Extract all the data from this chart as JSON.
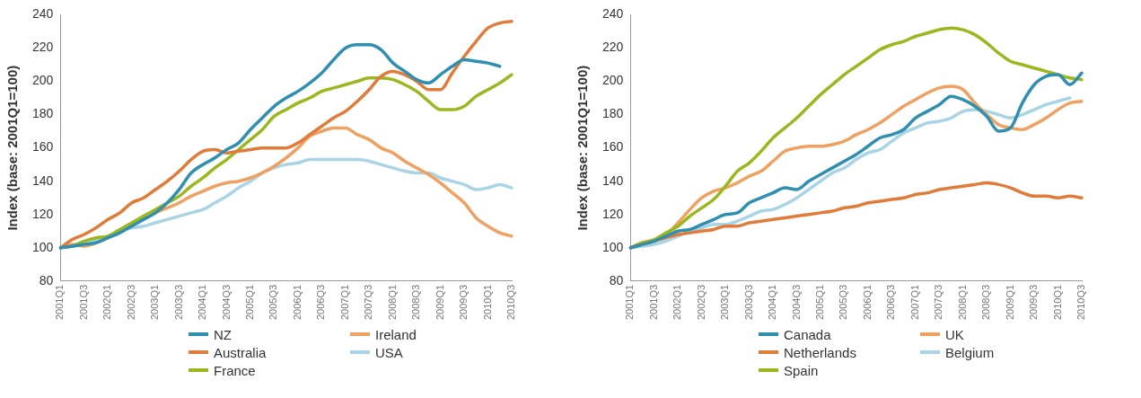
{
  "chart_data": [
    {
      "type": "line",
      "ylabel": "Index (base: 2001Q1=100)",
      "categories": [
        "2001Q1",
        null,
        "2001Q3",
        null,
        "2002Q1",
        null,
        "2002Q3",
        null,
        "2003Q1",
        null,
        "2003Q3",
        null,
        "2004Q1",
        null,
        "2004Q3",
        null,
        "2005Q1",
        null,
        "2005Q3",
        null,
        "2006Q1",
        null,
        "2006Q3",
        null,
        "2007Q1",
        null,
        "2007Q3",
        null,
        "2008Q1",
        null,
        "2008Q3",
        null,
        "2009Q1",
        null,
        "2009Q3",
        null,
        "2010Q1",
        null,
        "2010Q3"
      ],
      "ylim": [
        80,
        240
      ],
      "yticks": [
        80,
        100,
        120,
        140,
        160,
        180,
        200,
        220,
        240
      ],
      "grid": false,
      "legend": "bottom",
      "marker": "none",
      "line_style": "solid",
      "series": [
        {
          "name": "NZ",
          "color": "#2e8fb0",
          "values": [
            100,
            101,
            102,
            103,
            106,
            109,
            113,
            117,
            121,
            127,
            135,
            145,
            150,
            154,
            159,
            163,
            171,
            178,
            185,
            190,
            194,
            199,
            205,
            213,
            220,
            222,
            222,
            219,
            211,
            206,
            201,
            199,
            204,
            209,
            213,
            212,
            211,
            209,
            null
          ]
        },
        {
          "name": "Australia",
          "color": "#e07b39",
          "values": [
            100,
            105,
            108,
            112,
            117,
            121,
            127,
            130,
            135,
            140,
            146,
            153,
            158,
            159,
            157,
            158,
            159,
            160,
            160,
            160,
            163,
            168,
            173,
            178,
            182,
            188,
            195,
            203,
            206,
            204,
            200,
            195,
            195,
            205,
            215,
            224,
            232,
            235,
            236
          ]
        },
        {
          "name": "France",
          "color": "#9ab81e",
          "values": [
            100,
            101,
            104,
            106,
            107,
            111,
            115,
            119,
            123,
            127,
            131,
            137,
            142,
            148,
            153,
            159,
            165,
            171,
            179,
            183,
            187,
            190,
            194,
            196,
            198,
            200,
            202,
            202,
            201,
            198,
            194,
            188,
            183,
            183,
            185,
            191,
            195,
            199,
            204
          ]
        },
        {
          "name": "Ireland",
          "color": "#f0a060",
          "values": [
            100,
            102,
            101,
            103,
            106,
            110,
            114,
            117,
            121,
            124,
            127,
            131,
            134,
            137,
            139,
            140,
            142,
            145,
            149,
            154,
            160,
            167,
            170,
            172,
            172,
            168,
            165,
            160,
            157,
            152,
            148,
            144,
            139,
            133,
            127,
            118,
            113,
            109,
            107
          ]
        },
        {
          "name": "USA",
          "color": "#a8d4e6",
          "values": [
            100,
            101,
            102,
            105,
            107,
            110,
            112,
            113,
            115,
            117,
            119,
            121,
            123,
            127,
            131,
            136,
            140,
            145,
            148,
            150,
            151,
            153,
            153,
            153,
            153,
            153,
            152,
            150,
            148,
            146,
            145,
            145,
            142,
            140,
            138,
            135,
            136,
            138,
            136
          ]
        }
      ]
    },
    {
      "type": "line",
      "ylabel": "Index (base: 2001Q1=100)",
      "categories": [
        "2001Q1",
        null,
        "2001Q3",
        null,
        "2002Q1",
        null,
        "2002Q3",
        null,
        "2003Q1",
        null,
        "2003Q3",
        null,
        "2004Q1",
        null,
        "2004Q3",
        null,
        "2005Q1",
        null,
        "2005Q3",
        null,
        "2006Q1",
        null,
        "2006Q3",
        null,
        "2007Q1",
        null,
        "2007Q3",
        null,
        "2008Q1",
        null,
        "2008Q3",
        null,
        "2009Q1",
        null,
        "2009Q3",
        null,
        "2010Q1",
        null,
        "2010Q3"
      ],
      "ylim": [
        80,
        240
      ],
      "yticks": [
        80,
        100,
        120,
        140,
        160,
        180,
        200,
        220,
        240
      ],
      "grid": false,
      "legend": "bottom",
      "marker": "none",
      "line_style": "solid",
      "series": [
        {
          "name": "Canada",
          "color": "#2e8fb0",
          "values": [
            100,
            102,
            104,
            107,
            110,
            111,
            114,
            117,
            120,
            121,
            127,
            130,
            133,
            136,
            135,
            140,
            144,
            148,
            152,
            156,
            161,
            166,
            168,
            171,
            178,
            182,
            186,
            191,
            189,
            185,
            179,
            170,
            172,
            187,
            198,
            203,
            204,
            198,
            205
          ]
        },
        {
          "name": "Netherlands",
          "color": "#e07b39",
          "values": [
            100,
            102,
            104,
            106,
            108,
            109,
            110,
            111,
            113,
            113,
            115,
            116,
            117,
            118,
            119,
            120,
            121,
            122,
            124,
            125,
            127,
            128,
            129,
            130,
            132,
            133,
            135,
            136,
            137,
            138,
            139,
            138,
            136,
            133,
            131,
            131,
            130,
            131,
            130
          ]
        },
        {
          "name": "Spain",
          "color": "#9ab81e",
          "values": [
            100,
            103,
            105,
            109,
            113,
            119,
            124,
            129,
            137,
            146,
            151,
            158,
            166,
            172,
            178,
            185,
            192,
            198,
            204,
            209,
            214,
            219,
            222,
            224,
            227,
            229,
            231,
            232,
            231,
            228,
            223,
            217,
            212,
            210,
            208,
            206,
            204,
            202,
            201
          ]
        },
        {
          "name": "UK",
          "color": "#f0a060",
          "values": [
            100,
            103,
            104,
            108,
            115,
            123,
            130,
            134,
            136,
            139,
            143,
            146,
            152,
            158,
            160,
            161,
            161,
            162,
            164,
            168,
            171,
            175,
            180,
            185,
            189,
            193,
            196,
            197,
            195,
            187,
            180,
            174,
            172,
            171,
            174,
            178,
            183,
            187,
            188
          ]
        },
        {
          "name": "Belgium",
          "color": "#a8d4e6",
          "values": [
            100,
            101,
            102,
            104,
            107,
            110,
            112,
            114,
            114,
            116,
            119,
            122,
            123,
            126,
            130,
            135,
            140,
            145,
            148,
            153,
            157,
            159,
            164,
            169,
            172,
            175,
            176,
            178,
            182,
            183,
            182,
            180,
            178,
            180,
            183,
            186,
            188,
            190,
            null
          ]
        }
      ]
    }
  ]
}
